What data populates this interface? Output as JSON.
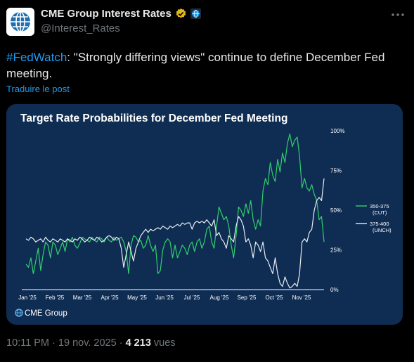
{
  "account": {
    "display_name": "CME Group Interest Rates",
    "handle": "@Interest_Rates",
    "verified_color": "#e2b719",
    "affiliate_color": "#1d9bf0",
    "avatar_icon": "globe-icon"
  },
  "tweet": {
    "hashtag": "#FedWatch",
    "text": ": \"Strongly differing views\" continue to define December Fed meeting.",
    "translate_label": "Traduire le post",
    "time": "10:11 PM",
    "separator": "·",
    "date": "19 nov. 2025",
    "views_count": "4 213",
    "views_label": "vues"
  },
  "chart_data": {
    "type": "line",
    "title": "Target Rate Probabilities for December Fed Meeting",
    "x_ticks": [
      "Jan '25",
      "Feb '25",
      "Mar '25",
      "Apr '25",
      "May '25",
      "Jun '25",
      "Jul '25",
      "Aug '25",
      "Sep '25",
      "Oct '25",
      "Nov '25"
    ],
    "y_ticks": [
      "100%",
      "75%",
      "50%",
      "25%",
      "0%"
    ],
    "ylim": [
      0,
      100
    ],
    "grid": false,
    "legend_position": "right",
    "source_label": "CME Group",
    "series": [
      {
        "name": "350-375",
        "sub": "(CUT)",
        "color": "#2fd06b",
        "points": [
          [
            0,
            16
          ],
          [
            0.5,
            14
          ],
          [
            1,
            20
          ],
          [
            1.5,
            10
          ],
          [
            2,
            18
          ],
          [
            2.5,
            26
          ],
          [
            3,
            12
          ],
          [
            3.5,
            22
          ],
          [
            4,
            30
          ],
          [
            4.5,
            28
          ],
          [
            5,
            20
          ],
          [
            5.5,
            30
          ],
          [
            6,
            28
          ],
          [
            6.5,
            22
          ],
          [
            7,
            26
          ],
          [
            7.5,
            30
          ],
          [
            8,
            24
          ],
          [
            8.5,
            32
          ],
          [
            9,
            30
          ],
          [
            9.5,
            33
          ],
          [
            10,
            28
          ],
          [
            10.5,
            26
          ],
          [
            11,
            29
          ],
          [
            11.5,
            33
          ],
          [
            12,
            32
          ],
          [
            12.5,
            31
          ],
          [
            13,
            30
          ],
          [
            13.5,
            33
          ],
          [
            14,
            31
          ],
          [
            14.5,
            30
          ],
          [
            15,
            33
          ],
          [
            15.5,
            32
          ],
          [
            16,
            30
          ],
          [
            16.5,
            33
          ],
          [
            17,
            31
          ],
          [
            17.5,
            30
          ],
          [
            18,
            33
          ],
          [
            18.5,
            31
          ],
          [
            19,
            32
          ],
          [
            19.5,
            33
          ],
          [
            20,
            30
          ],
          [
            20.5,
            24
          ],
          [
            21,
            10
          ],
          [
            21.5,
            28
          ],
          [
            22,
            34
          ],
          [
            22.5,
            33
          ],
          [
            23,
            30
          ],
          [
            23.5,
            31
          ],
          [
            24,
            26
          ],
          [
            24.5,
            28
          ],
          [
            25,
            34
          ],
          [
            25.5,
            28
          ],
          [
            26,
            24
          ],
          [
            26.5,
            28
          ],
          [
            27,
            10
          ],
          [
            27.5,
            12
          ],
          [
            28,
            25
          ],
          [
            28.5,
            30
          ],
          [
            29,
            32
          ],
          [
            29.5,
            30
          ],
          [
            30,
            20
          ],
          [
            30.5,
            28
          ],
          [
            31,
            20
          ],
          [
            31.5,
            24
          ],
          [
            32,
            28
          ],
          [
            32.5,
            26
          ],
          [
            33,
            22
          ],
          [
            33.5,
            28
          ],
          [
            34,
            30
          ],
          [
            34.5,
            24
          ],
          [
            35,
            30
          ],
          [
            35.5,
            32
          ],
          [
            36,
            26
          ],
          [
            36.5,
            30
          ],
          [
            37,
            38
          ],
          [
            37.5,
            40
          ],
          [
            38,
            30
          ],
          [
            38.5,
            26
          ],
          [
            39,
            40
          ],
          [
            39.5,
            52
          ],
          [
            40,
            48
          ],
          [
            40.5,
            44
          ],
          [
            41,
            46
          ],
          [
            41.5,
            40
          ],
          [
            42,
            28
          ],
          [
            42.5,
            20
          ],
          [
            43,
            34
          ],
          [
            43.5,
            52
          ],
          [
            44,
            50
          ],
          [
            44.5,
            46
          ],
          [
            45,
            54
          ],
          [
            45.5,
            48
          ],
          [
            46,
            56
          ],
          [
            46.5,
            44
          ],
          [
            47,
            38
          ],
          [
            47.5,
            44
          ],
          [
            48,
            40
          ],
          [
            48.5,
            62
          ],
          [
            49,
            70
          ],
          [
            49.5,
            66
          ],
          [
            50,
            80
          ],
          [
            50.5,
            72
          ],
          [
            51,
            68
          ],
          [
            51.5,
            82
          ],
          [
            52,
            74
          ],
          [
            52.5,
            86
          ],
          [
            53,
            80
          ],
          [
            53.5,
            92
          ],
          [
            54,
            98
          ],
          [
            54.5,
            90
          ],
          [
            55,
            94
          ],
          [
            55.5,
            96
          ],
          [
            56,
            84
          ],
          [
            56.5,
            64
          ],
          [
            57,
            70
          ],
          [
            57.5,
            64
          ],
          [
            58,
            62
          ],
          [
            58.5,
            66
          ],
          [
            59,
            60
          ],
          [
            59.5,
            56
          ],
          [
            60,
            44
          ],
          [
            60.5,
            46
          ],
          [
            61,
            30
          ]
        ]
      },
      {
        "name": "375-400",
        "sub": "(UNCH)",
        "color": "#e8ecf2",
        "points": [
          [
            0,
            32
          ],
          [
            0.5,
            31
          ],
          [
            1,
            33
          ],
          [
            1.5,
            32
          ],
          [
            2,
            30
          ],
          [
            2.5,
            31
          ],
          [
            3,
            32
          ],
          [
            3.5,
            30
          ],
          [
            4,
            33
          ],
          [
            4.5,
            31
          ],
          [
            5,
            30
          ],
          [
            5.5,
            32
          ],
          [
            6,
            31
          ],
          [
            6.5,
            30
          ],
          [
            7,
            32
          ],
          [
            7.5,
            31
          ],
          [
            8,
            30
          ],
          [
            8.5,
            32
          ],
          [
            9,
            31
          ],
          [
            9.5,
            30
          ],
          [
            10,
            32
          ],
          [
            10.5,
            31
          ],
          [
            11,
            33
          ],
          [
            11.5,
            32
          ],
          [
            12,
            30
          ],
          [
            12.5,
            31
          ],
          [
            13,
            33
          ],
          [
            13.5,
            32
          ],
          [
            14,
            31
          ],
          [
            14.5,
            33
          ],
          [
            15,
            32
          ],
          [
            15.5,
            30
          ],
          [
            16,
            31
          ],
          [
            16.5,
            33
          ],
          [
            17,
            34
          ],
          [
            17.5,
            33
          ],
          [
            18,
            31
          ],
          [
            18.5,
            33
          ],
          [
            19,
            32
          ],
          [
            19.5,
            26
          ],
          [
            20,
            14
          ],
          [
            20.5,
            22
          ],
          [
            21,
            30
          ],
          [
            21.5,
            24
          ],
          [
            22,
            18
          ],
          [
            22.5,
            26
          ],
          [
            23,
            30
          ],
          [
            23.5,
            34
          ],
          [
            24,
            36
          ],
          [
            24.5,
            38
          ],
          [
            25,
            36
          ],
          [
            25.5,
            38
          ],
          [
            26,
            37
          ],
          [
            26.5,
            38
          ],
          [
            27,
            39
          ],
          [
            27.5,
            38
          ],
          [
            28,
            40
          ],
          [
            28.5,
            39
          ],
          [
            29,
            38
          ],
          [
            29.5,
            40
          ],
          [
            30,
            39
          ],
          [
            30.5,
            40
          ],
          [
            31,
            41
          ],
          [
            31.5,
            40
          ],
          [
            32,
            42
          ],
          [
            32.5,
            41
          ],
          [
            33,
            42
          ],
          [
            33.5,
            42
          ],
          [
            34,
            38
          ],
          [
            34.5,
            42
          ],
          [
            35,
            43
          ],
          [
            35.5,
            42
          ],
          [
            36,
            43
          ],
          [
            36.5,
            42
          ],
          [
            37,
            44
          ],
          [
            37.5,
            42
          ],
          [
            38,
            40
          ],
          [
            38.5,
            44
          ],
          [
            39,
            34
          ],
          [
            39.5,
            36
          ],
          [
            40,
            32
          ],
          [
            40.5,
            30
          ],
          [
            41,
            26
          ],
          [
            41.5,
            34
          ],
          [
            42,
            32
          ],
          [
            42.5,
            30
          ],
          [
            43,
            40
          ],
          [
            43.5,
            46
          ],
          [
            44,
            44
          ],
          [
            44.5,
            40
          ],
          [
            45,
            30
          ],
          [
            45.5,
            32
          ],
          [
            46,
            28
          ],
          [
            46.5,
            20
          ],
          [
            47,
            30
          ],
          [
            47.5,
            28
          ],
          [
            48,
            24
          ],
          [
            48.5,
            30
          ],
          [
            49,
            20
          ],
          [
            49.5,
            18
          ],
          [
            50,
            14
          ],
          [
            50.5,
            10
          ],
          [
            51,
            20
          ],
          [
            51.5,
            10
          ],
          [
            52,
            4
          ],
          [
            52.5,
            2
          ],
          [
            53,
            8
          ],
          [
            53.5,
            4
          ],
          [
            54,
            1
          ],
          [
            54.5,
            2
          ],
          [
            55,
            4
          ],
          [
            55.5,
            2
          ],
          [
            56,
            10
          ],
          [
            56.5,
            30
          ],
          [
            57,
            32
          ],
          [
            57.5,
            30
          ],
          [
            58,
            36
          ],
          [
            58.5,
            38
          ],
          [
            59,
            50
          ],
          [
            59.5,
            56
          ],
          [
            60,
            58
          ],
          [
            60.5,
            56
          ],
          [
            61,
            70
          ]
        ]
      }
    ]
  }
}
